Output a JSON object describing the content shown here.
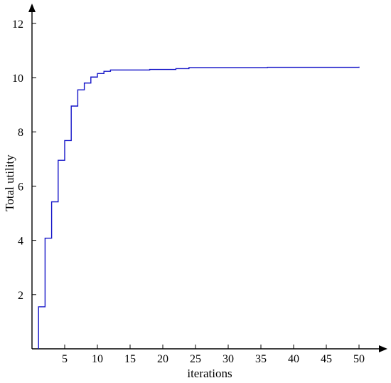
{
  "chart_data": {
    "type": "line",
    "title": "",
    "xlabel": "iterations",
    "ylabel": "Total utility",
    "xlim": [
      0,
      53
    ],
    "ylim": [
      0,
      13
    ],
    "x_ticks": [
      5,
      10,
      15,
      20,
      25,
      30,
      35,
      40,
      45,
      50
    ],
    "y_ticks": [
      2,
      4,
      6,
      8,
      10,
      12
    ],
    "grid": false,
    "line_style": "step",
    "color": "#1414c8",
    "series": [
      {
        "x": [
          1,
          1,
          2,
          3,
          4,
          5,
          6,
          7,
          8,
          9,
          10,
          11,
          12,
          18,
          22,
          24,
          36,
          50
        ],
        "values": [
          0,
          1.55,
          4.08,
          5.42,
          6.95,
          7.68,
          8.95,
          9.55,
          9.8,
          10.02,
          10.15,
          10.23,
          10.28,
          10.3,
          10.33,
          10.37,
          10.38,
          10.4
        ]
      }
    ]
  }
}
